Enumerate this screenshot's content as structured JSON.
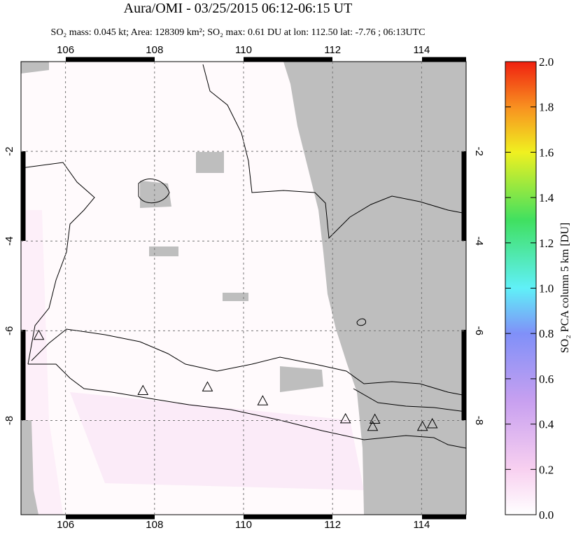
{
  "chart_data": {
    "type": "map",
    "title": "Aura/OMI - 03/25/2015 06:12-06:15 UT",
    "subtitle": "SO₂ mass: 0.045 kt; Area: 128309 km²; SO₂ max: 0.61 DU at lon: 112.50 lat: -7.76 ; 06:13UTC",
    "xlim": [
      105,
      115
    ],
    "ylim": [
      -10.1,
      0
    ],
    "xticks": [
      106,
      108,
      110,
      112,
      114
    ],
    "yticks": [
      -2,
      -4,
      -6,
      -8
    ],
    "grid": true,
    "markers": {
      "x": [
        105.4,
        107.74,
        109.19,
        110.43,
        112.29,
        112.95,
        112.9,
        114.02,
        114.24
      ],
      "y": [
        -6.1,
        -7.33,
        -7.25,
        -7.56,
        -7.96,
        -7.97,
        -8.13,
        -8.13,
        -8.07
      ]
    },
    "colorbar": {
      "label": "SO₂ PCA column 5 km [DU]",
      "lim": [
        0,
        2
      ],
      "ticks": [
        {
          "value": 0,
          "label": "0.0"
        },
        {
          "value": 0.2,
          "label": "0.2"
        },
        {
          "value": 0.4,
          "label": "0.4"
        },
        {
          "value": 0.6,
          "label": "0.6"
        },
        {
          "value": 0.8,
          "label": "0.8"
        },
        {
          "value": 1,
          "label": "1.0"
        },
        {
          "value": 1.2,
          "label": "1.2"
        },
        {
          "value": 1.4,
          "label": "1.4"
        },
        {
          "value": 1.6,
          "label": "1.6"
        },
        {
          "value": 1.8,
          "label": "1.8"
        },
        {
          "value": 2,
          "label": "2.0"
        }
      ]
    }
  }
}
